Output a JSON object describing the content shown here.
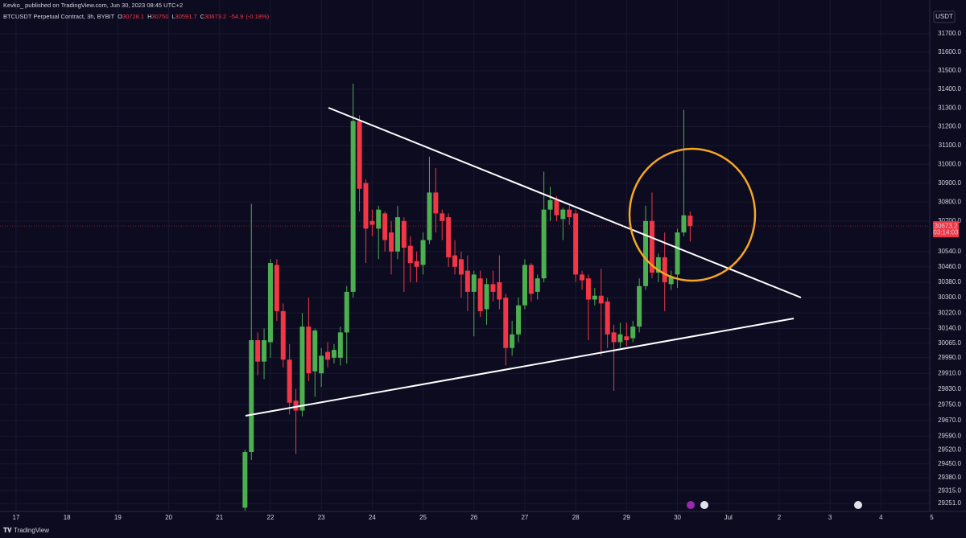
{
  "header": {
    "publisher": "Kevko_ published on TradingView.com, Jun 30, 2023 08:45 UTC+2",
    "symbol": "BTCUSDT Perpetual Contract, 3h, BYBIT",
    "open_label": "O",
    "open": 30728.1,
    "high_label": "H",
    "high": 30750.0,
    "low_label": "L",
    "low": 30591.7,
    "close_label": "C",
    "close": 30673.2,
    "change": -54.9,
    "change_percent": "(-0.18%)"
  },
  "footer": {
    "brand": "TradingView"
  },
  "chart_data": {
    "type": "candlestick",
    "currency": "USDT",
    "log_scale": true,
    "grid": true,
    "up_color": "#4caf50",
    "down_color": "#f23645",
    "last_price": 30673.2,
    "countdown": "03:14:03",
    "xlim": [
      16.684,
      34.96
    ],
    "xticks": [
      17,
      18,
      19,
      20,
      21,
      22,
      23,
      24,
      25,
      26,
      27,
      28,
      29,
      30,
      {
        "value": 31,
        "label": "Jul"
      },
      {
        "value": 32,
        "label": "2"
      },
      {
        "value": 33,
        "label": "3"
      },
      {
        "value": 34,
        "label": "4"
      },
      {
        "value": 35,
        "label": "5"
      }
    ],
    "ylim": [
      29211,
      31831
    ],
    "yticks": [
      {
        "value": 31700,
        "label": "31700.0"
      },
      {
        "value": 31600,
        "label": "31600.0"
      },
      {
        "value": 31500,
        "label": "31500.0"
      },
      {
        "value": 31400,
        "label": "31400.0"
      },
      {
        "value": 31300,
        "label": "31300.0"
      },
      {
        "value": 31200,
        "label": "31200.0"
      },
      {
        "value": 31100,
        "label": "31100.0"
      },
      {
        "value": 31000,
        "label": "31000.0"
      },
      {
        "value": 30900,
        "label": "30900.0"
      },
      {
        "value": 30800,
        "label": "30800.0"
      },
      {
        "value": 30700,
        "label": "30700.0"
      },
      {
        "value": 30540,
        "label": "30540.0"
      },
      {
        "value": 30460,
        "label": "30460.0"
      },
      {
        "value": 30380,
        "label": "30380.0"
      },
      {
        "value": 30300,
        "label": "30300.0"
      },
      {
        "value": 30220,
        "label": "30220.0"
      },
      {
        "value": 30140,
        "label": "30140.0"
      },
      {
        "value": 30065,
        "label": "30065.0"
      },
      {
        "value": 29990,
        "label": "29990.0"
      },
      {
        "value": 29910,
        "label": "29910.0"
      },
      {
        "value": 29830,
        "label": "29830.0"
      },
      {
        "value": 29750,
        "label": "29750.0"
      },
      {
        "value": 29670,
        "label": "29670.0"
      },
      {
        "value": 29590,
        "label": "29590.0"
      },
      {
        "value": 29520,
        "label": "29520.0"
      },
      {
        "value": 29450,
        "label": "29450.0"
      },
      {
        "value": 29380,
        "label": "29380.0"
      },
      {
        "value": 29315,
        "label": "29315.0"
      },
      {
        "value": 29251,
        "label": "29251.0"
      }
    ],
    "x": [
      21.5,
      21.625,
      21.75,
      21.875,
      22,
      22.125,
      22.25,
      22.375,
      22.5,
      22.625,
      22.75,
      22.875,
      23,
      23.125,
      23.25,
      23.375,
      23.5,
      23.625,
      23.75,
      23.875,
      24,
      24.125,
      24.25,
      24.375,
      24.5,
      24.625,
      24.75,
      24.875,
      25,
      25.125,
      25.25,
      25.375,
      25.5,
      25.625,
      25.75,
      25.875,
      26,
      26.125,
      26.25,
      26.375,
      26.5,
      26.625,
      26.75,
      26.875,
      27,
      27.125,
      27.25,
      27.375,
      27.5,
      27.625,
      27.75,
      27.875,
      28,
      28.125,
      28.25,
      28.375,
      28.5,
      28.625,
      28.75,
      28.875,
      29,
      29.125,
      29.25,
      29.375,
      29.5,
      29.625,
      29.75,
      29.875,
      30,
      30.125,
      30.25
    ],
    "open": [
      29230,
      29510,
      30080,
      29970,
      30070,
      30470,
      30230,
      29980,
      29770,
      29720,
      30150,
      29920,
      29910,
      30020,
      29990,
      29990,
      30120,
      30330,
      31230,
      30900,
      30700,
      30660,
      30740,
      30640,
      30540,
      30700,
      30570,
      30490,
      30470,
      30600,
      30850,
      30740,
      30720,
      30520,
      30500,
      30440,
      30330,
      30400,
      30240,
      30370,
      30380,
      30300,
      30040,
      30110,
      30260,
      30470,
      30330,
      30400,
      30760,
      30810,
      30710,
      30760,
      30740,
      30420,
      30400,
      30290,
      30310,
      30280,
      30120,
      30070,
      30100,
      30090,
      30150,
      30360,
      30700,
      30430,
      30510,
      30370,
      30420,
      30640,
      30728.1
    ],
    "high": [
      29520,
      30790,
      30120,
      30140,
      30500,
      30500,
      30270,
      30060,
      29830,
      30220,
      30300,
      30140,
      30040,
      30070,
      30060,
      30150,
      30360,
      31430,
      31260,
      30920,
      30760,
      30780,
      30750,
      30700,
      30780,
      30720,
      30620,
      30540,
      30640,
      31040,
      30980,
      30760,
      30740,
      30600,
      30540,
      30520,
      30440,
      30440,
      30400,
      30440,
      30520,
      30320,
      30180,
      30300,
      30500,
      30480,
      30420,
      30960,
      30880,
      30830,
      30770,
      30780,
      30760,
      30440,
      30420,
      30350,
      30450,
      30300,
      30160,
      30170,
      30170,
      30180,
      30400,
      30780,
      30850,
      30530,
      30640,
      30440,
      30660,
      31290,
      30750.0
    ],
    "low": [
      29215,
      29470,
      29900,
      29880,
      29990,
      30180,
      29940,
      29700,
      29500,
      29690,
      29870,
      29790,
      29840,
      29940,
      29960,
      29950,
      29960,
      30300,
      30750,
      30480,
      30620,
      30500,
      30540,
      30420,
      30500,
      30330,
      30380,
      30380,
      30420,
      30580,
      30640,
      30600,
      30460,
      30420,
      30300,
      30230,
      30100,
      30200,
      30160,
      30280,
      30240,
      29950,
      30000,
      30070,
      30240,
      30280,
      30290,
      30380,
      30700,
      30700,
      30600,
      30680,
      30380,
      30340,
      30080,
      30260,
      30000,
      30040,
      29820,
      30040,
      30050,
      30070,
      30120,
      30340,
      30400,
      30380,
      30230,
      30340,
      30350,
      30620,
      30591.7
    ],
    "close": [
      29510,
      30080,
      29970,
      30080,
      30480,
      30230,
      29980,
      29760,
      29720,
      30150,
      29910,
      30130,
      30000,
      29980,
      30030,
      30120,
      30330,
      31230,
      30870,
      30660,
      30680,
      30760,
      30600,
      30540,
      30720,
      30560,
      30480,
      30460,
      30600,
      30850,
      30740,
      30700,
      30510,
      30460,
      30420,
      30330,
      30420,
      30230,
      30370,
      30330,
      30290,
      30040,
      30110,
      30260,
      30470,
      30320,
      30400,
      30760,
      30810,
      30730,
      30760,
      30720,
      30420,
      30390,
      30290,
      30310,
      30270,
      30110,
      30070,
      30110,
      30080,
      30150,
      30360,
      30700,
      30430,
      30510,
      30380,
      30410,
      30640,
      30730,
      30673.2
    ]
  }
}
